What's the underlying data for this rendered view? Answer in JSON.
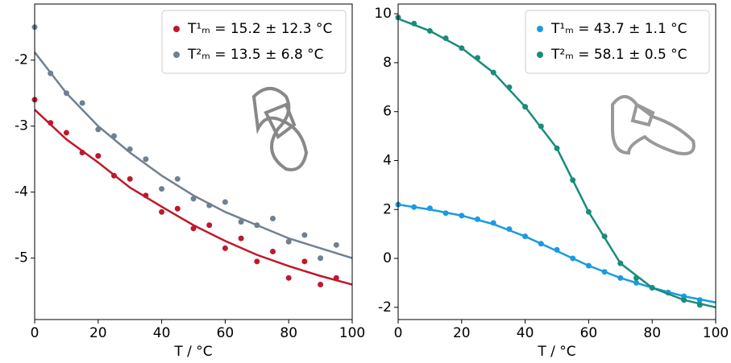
{
  "chart_data": [
    {
      "type": "scatter",
      "xlabel": "T / °C",
      "xlim": [
        0,
        100
      ],
      "ylim": [
        -5.93,
        -1.15
      ],
      "xticks": [
        0,
        20,
        40,
        60,
        80,
        100
      ],
      "yticks": [
        -5,
        -4,
        -3,
        -2
      ],
      "legend": "upper right",
      "series": [
        {
          "name": "T¹ₘ = 15.2 ± 12.3 °C",
          "color": "#c0182a",
          "style": "points",
          "x": [
            0,
            5,
            10,
            15,
            20,
            25,
            30,
            35,
            40,
            45,
            50,
            55,
            60,
            65,
            70,
            75,
            80,
            85,
            90,
            95
          ],
          "values": [
            -2.6,
            -2.95,
            -3.1,
            -3.4,
            -3.45,
            -3.75,
            -3.8,
            -4.05,
            -4.3,
            -4.25,
            -4.55,
            -4.5,
            -4.85,
            -4.7,
            -5.05,
            -4.9,
            -5.3,
            -5.05,
            -5.4,
            -5.3
          ]
        },
        {
          "name": "T²ₘ = 13.5 ± 6.8 °C",
          "color": "#708090",
          "style": "points",
          "x": [
            0,
            5,
            10,
            15,
            20,
            25,
            30,
            35,
            40,
            45,
            50,
            55,
            60,
            65,
            70,
            75,
            80,
            85,
            90,
            95
          ],
          "values": [
            -1.5,
            -2.2,
            -2.5,
            -2.65,
            -3.05,
            -3.15,
            -3.35,
            -3.5,
            -3.95,
            -3.8,
            -4.1,
            -4.2,
            -4.15,
            -4.45,
            -4.5,
            -4.4,
            -4.75,
            -4.65,
            -5.0,
            -4.8
          ]
        },
        {
          "color": "#c0182a",
          "style": "line",
          "x": [
            0,
            10,
            20,
            30,
            40,
            50,
            60,
            70,
            80,
            90,
            100
          ],
          "values": [
            -2.75,
            -3.2,
            -3.55,
            -3.93,
            -4.22,
            -4.5,
            -4.74,
            -4.95,
            -5.12,
            -5.27,
            -5.4
          ]
        },
        {
          "color": "#708090",
          "style": "line",
          "x": [
            0,
            10,
            20,
            30,
            40,
            50,
            60,
            70,
            80,
            90,
            100
          ],
          "values": [
            -1.88,
            -2.5,
            -3.0,
            -3.4,
            -3.75,
            -4.05,
            -4.3,
            -4.5,
            -4.7,
            -4.85,
            -5.0
          ]
        }
      ]
    },
    {
      "type": "scatter",
      "xlabel": "T / °C",
      "xlim": [
        0,
        100
      ],
      "ylim": [
        -2.5,
        10.4
      ],
      "xticks": [
        0,
        20,
        40,
        60,
        80,
        100
      ],
      "yticks": [
        -2,
        0,
        2,
        4,
        6,
        8,
        10
      ],
      "legend": "upper right",
      "series": [
        {
          "name": "T¹ₘ = 43.7 ± 1.1 °C",
          "color": "#1a9be0",
          "style": "points",
          "x": [
            0,
            5,
            10,
            15,
            20,
            25,
            30,
            35,
            40,
            45,
            50,
            55,
            60,
            65,
            70,
            75,
            80,
            85,
            90,
            95
          ],
          "values": [
            2.2,
            2.1,
            2.05,
            1.85,
            1.75,
            1.6,
            1.45,
            1.2,
            0.9,
            0.6,
            0.35,
            0.0,
            -0.3,
            -0.55,
            -0.8,
            -1.0,
            -1.2,
            -1.4,
            -1.55,
            -1.7
          ]
        },
        {
          "name": "T²ₘ = 58.1 ± 0.5 °C",
          "color": "#1a8c7a",
          "style": "points",
          "x": [
            0,
            5,
            10,
            15,
            20,
            25,
            30,
            35,
            40,
            45,
            50,
            55,
            60,
            65,
            70,
            75,
            80,
            85,
            90,
            95
          ],
          "values": [
            9.85,
            9.6,
            9.3,
            9.0,
            8.6,
            8.2,
            7.6,
            7.0,
            6.2,
            5.4,
            4.5,
            3.2,
            1.9,
            0.9,
            -0.2,
            -0.8,
            -1.2,
            -1.4,
            -1.7,
            -1.9
          ]
        },
        {
          "color": "#1a9be0",
          "style": "line",
          "x": [
            0,
            10,
            20,
            30,
            40,
            50,
            60,
            70,
            80,
            90,
            100
          ],
          "values": [
            2.2,
            2.0,
            1.75,
            1.4,
            0.9,
            0.3,
            -0.3,
            -0.8,
            -1.2,
            -1.55,
            -1.8
          ]
        },
        {
          "color": "#1a8c7a",
          "style": "line",
          "x": [
            0,
            10,
            20,
            30,
            40,
            50,
            55,
            60,
            70,
            80,
            90,
            100
          ],
          "values": [
            9.8,
            9.3,
            8.6,
            7.6,
            6.2,
            4.5,
            3.2,
            1.9,
            -0.2,
            -1.2,
            -1.7,
            -2.0
          ]
        }
      ]
    }
  ]
}
